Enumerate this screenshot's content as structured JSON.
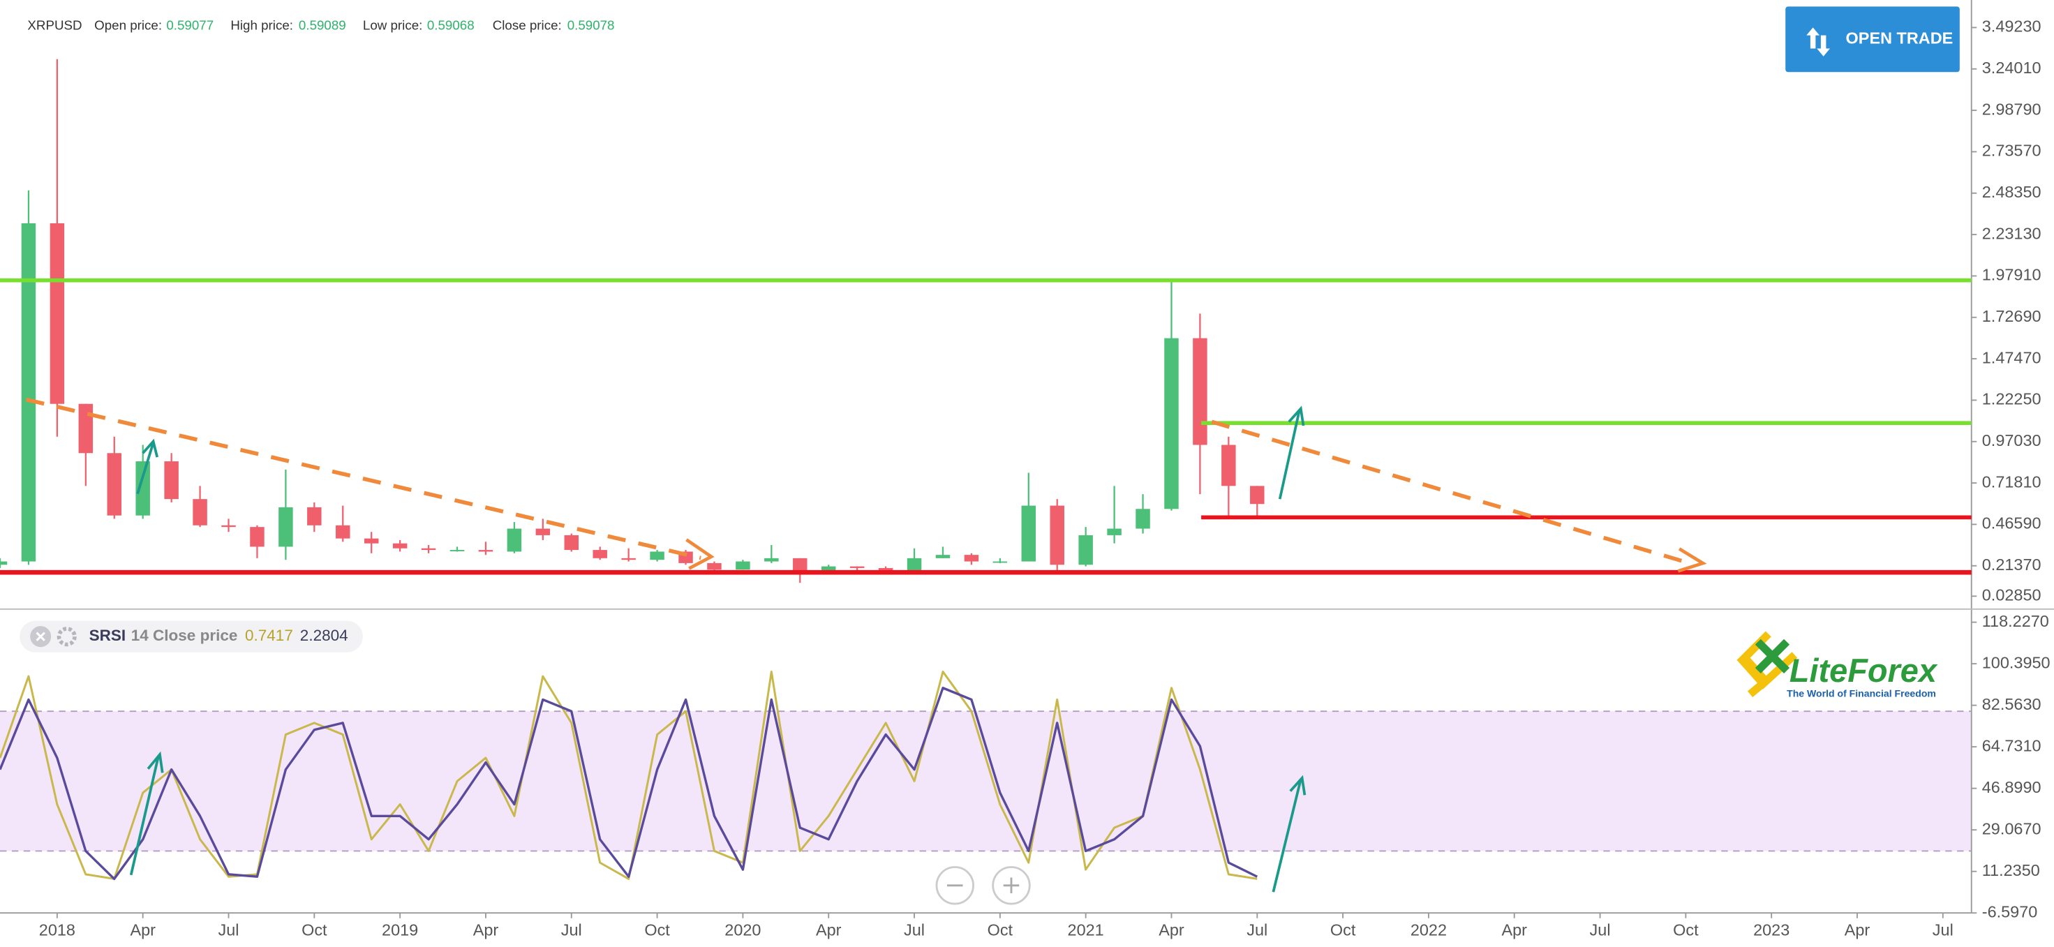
{
  "header": {
    "symbol": "XRPUSD",
    "fields": [
      {
        "label": "Open price:",
        "value": 0.59077
      },
      {
        "label": "High price:",
        "value": 0.59089
      },
      {
        "label": "Low price:",
        "value": 0.59068
      },
      {
        "label": "Close price:",
        "value": 0.59078
      }
    ]
  },
  "button": {
    "label": "OPEN TRADE"
  },
  "indicator": {
    "name": "SRSI",
    "params": "14 Close price",
    "value1": 0.7417,
    "value2": 2.2804
  },
  "logo": {
    "name": "LiteForex",
    "tagline": "The World of Financial Freedom"
  },
  "chart_data": [
    {
      "type": "candlestick",
      "x": [
        "2017-11",
        "2017-12",
        "2018-01",
        "2018-02",
        "2018-03",
        "2018-04",
        "2018-05",
        "2018-06",
        "2018-07",
        "2018-08",
        "2018-09",
        "2018-10",
        "2018-11",
        "2018-12",
        "2019-01",
        "2019-02",
        "2019-03",
        "2019-04",
        "2019-05",
        "2019-06",
        "2019-07",
        "2019-08",
        "2019-09",
        "2019-10",
        "2019-11",
        "2019-12",
        "2020-01",
        "2020-02",
        "2020-03",
        "2020-04",
        "2020-05",
        "2020-06",
        "2020-07",
        "2020-08",
        "2020-09",
        "2020-10",
        "2020-11",
        "2020-12",
        "2021-01",
        "2021-02",
        "2021-03",
        "2021-04",
        "2021-05",
        "2021-06",
        "2021-07"
      ],
      "open": [
        0.22,
        0.24,
        2.3,
        1.2,
        0.9,
        0.52,
        0.85,
        0.62,
        0.46,
        0.45,
        0.33,
        0.57,
        0.46,
        0.38,
        0.35,
        0.32,
        0.31,
        0.31,
        0.3,
        0.44,
        0.4,
        0.31,
        0.26,
        0.25,
        0.3,
        0.23,
        0.19,
        0.24,
        0.26,
        0.17,
        0.21,
        0.2,
        0.18,
        0.26,
        0.28,
        0.24,
        0.24,
        0.58,
        0.22,
        0.4,
        0.44,
        0.56,
        1.6,
        0.95,
        0.7
      ],
      "high": [
        0.26,
        2.5,
        3.3,
        1.2,
        1.0,
        0.95,
        0.9,
        0.7,
        0.5,
        0.46,
        0.8,
        0.6,
        0.58,
        0.42,
        0.37,
        0.34,
        0.33,
        0.36,
        0.48,
        0.5,
        0.41,
        0.33,
        0.32,
        0.31,
        0.31,
        0.24,
        0.25,
        0.34,
        0.26,
        0.22,
        0.21,
        0.21,
        0.32,
        0.33,
        0.29,
        0.26,
        0.78,
        0.62,
        0.45,
        0.7,
        0.65,
        1.96,
        1.75,
        1.0,
        0.7
      ],
      "low": [
        0.2,
        0.22,
        1.0,
        0.7,
        0.5,
        0.5,
        0.6,
        0.45,
        0.42,
        0.26,
        0.25,
        0.42,
        0.36,
        0.29,
        0.3,
        0.29,
        0.3,
        0.28,
        0.29,
        0.37,
        0.3,
        0.25,
        0.24,
        0.24,
        0.22,
        0.18,
        0.19,
        0.23,
        0.11,
        0.17,
        0.18,
        0.17,
        0.17,
        0.26,
        0.22,
        0.23,
        0.24,
        0.17,
        0.21,
        0.35,
        0.41,
        0.55,
        0.65,
        0.5,
        0.51
      ],
      "close": [
        0.24,
        2.3,
        1.2,
        0.9,
        0.52,
        0.85,
        0.62,
        0.46,
        0.45,
        0.33,
        0.57,
        0.46,
        0.38,
        0.35,
        0.32,
        0.31,
        0.31,
        0.3,
        0.44,
        0.4,
        0.31,
        0.26,
        0.25,
        0.3,
        0.23,
        0.19,
        0.24,
        0.26,
        0.17,
        0.21,
        0.2,
        0.18,
        0.26,
        0.28,
        0.24,
        0.24,
        0.58,
        0.22,
        0.4,
        0.44,
        0.56,
        1.6,
        0.95,
        0.7,
        0.59
      ],
      "up_color": "#4cbf78",
      "down_color": "#f0606c",
      "xlim": [
        "2017-11",
        "2023-08"
      ],
      "ylim": [
        -0.026,
        3.66
      ],
      "yticks": [
        {
          "value": 0.0285,
          "label": "0.02850"
        },
        {
          "value": 0.2137,
          "label": "0.21370"
        },
        {
          "value": 0.4659,
          "label": "0.46590"
        },
        {
          "value": 0.7181,
          "label": "0.71810"
        },
        {
          "value": 0.9703,
          "label": "0.97030"
        },
        {
          "value": 1.2225,
          "label": "1.22250"
        },
        {
          "value": 1.4747,
          "label": "1.47470"
        },
        {
          "value": 1.7269,
          "label": "1.72690"
        },
        {
          "value": 1.9791,
          "label": "1.97910"
        },
        {
          "value": 2.2313,
          "label": "2.23130"
        },
        {
          "value": 2.4835,
          "label": "2.48350"
        },
        {
          "value": 2.7357,
          "label": "2.73570"
        },
        {
          "value": 2.9879,
          "label": "2.98790"
        },
        {
          "value": 3.2401,
          "label": "3.24010"
        },
        {
          "value": 3.4923,
          "label": "3.49230"
        }
      ]
    },
    {
      "type": "line",
      "x": [
        "2017-11",
        "2017-12",
        "2018-01",
        "2018-02",
        "2018-03",
        "2018-04",
        "2018-05",
        "2018-06",
        "2018-07",
        "2018-08",
        "2018-09",
        "2018-10",
        "2018-11",
        "2018-12",
        "2019-01",
        "2019-02",
        "2019-03",
        "2019-04",
        "2019-05",
        "2019-06",
        "2019-07",
        "2019-08",
        "2019-09",
        "2019-10",
        "2019-11",
        "2019-12",
        "2020-01",
        "2020-02",
        "2020-03",
        "2020-04",
        "2020-05",
        "2020-06",
        "2020-07",
        "2020-08",
        "2020-09",
        "2020-10",
        "2020-11",
        "2020-12",
        "2021-01",
        "2021-02",
        "2021-03",
        "2021-04",
        "2021-05",
        "2021-06",
        "2021-07"
      ],
      "series": [
        {
          "color": "#c9b84c",
          "values": [
            60,
            95,
            40,
            10,
            8,
            45,
            55,
            25,
            9,
            10,
            70,
            75,
            70,
            25,
            40,
            20,
            50,
            60,
            35,
            95,
            75,
            15,
            8,
            70,
            80,
            20,
            15,
            97,
            20,
            35,
            55,
            75,
            50,
            97,
            80,
            40,
            15,
            85,
            12,
            30,
            35,
            90,
            55,
            10,
            8
          ]
        },
        {
          "color": "#5a4a9c",
          "values": [
            55,
            85,
            60,
            20,
            8,
            25,
            55,
            35,
            10,
            9,
            55,
            72,
            75,
            35,
            35,
            25,
            40,
            58,
            40,
            85,
            80,
            25,
            9,
            55,
            85,
            35,
            12,
            85,
            30,
            25,
            50,
            70,
            55,
            90,
            85,
            45,
            20,
            75,
            20,
            25,
            35,
            85,
            65,
            15,
            9
          ]
        }
      ],
      "band": [
        20,
        80
      ],
      "band_color": "#f3e6fb",
      "xlim": [
        "2017-11",
        "2023-08"
      ],
      "ylim": [
        -6.597,
        123.87
      ],
      "yticks": [
        {
          "value": -6.597,
          "label": "-6.5970"
        },
        {
          "value": 11.235,
          "label": "11.2350"
        },
        {
          "value": 29.067,
          "label": "29.0670"
        },
        {
          "value": 46.899,
          "label": "46.8990"
        },
        {
          "value": 64.731,
          "label": "64.7310"
        },
        {
          "value": 82.563,
          "label": "82.5630"
        },
        {
          "value": 100.395,
          "label": "100.3950"
        },
        {
          "value": 118.227,
          "label": "118.2270"
        }
      ],
      "xticks": [
        {
          "value": "2018-01",
          "label": "2018"
        },
        {
          "value": "2018-04",
          "label": "Apr"
        },
        {
          "value": "2018-07",
          "label": "Jul"
        },
        {
          "value": "2018-10",
          "label": "Oct"
        },
        {
          "value": "2019-01",
          "label": "2019"
        },
        {
          "value": "2019-04",
          "label": "Apr"
        },
        {
          "value": "2019-07",
          "label": "Jul"
        },
        {
          "value": "2019-10",
          "label": "Oct"
        },
        {
          "value": "2020-01",
          "label": "2020"
        },
        {
          "value": "2020-04",
          "label": "Apr"
        },
        {
          "value": "2020-07",
          "label": "Jul"
        },
        {
          "value": "2020-10",
          "label": "Oct"
        },
        {
          "value": "2021-01",
          "label": "2021"
        },
        {
          "value": "2021-04",
          "label": "Apr"
        },
        {
          "value": "2021-07",
          "label": "Jul"
        },
        {
          "value": "2021-10",
          "label": "Oct"
        },
        {
          "value": "2022-01",
          "label": "2022"
        },
        {
          "value": "2022-04",
          "label": "Apr"
        },
        {
          "value": "2022-07",
          "label": "Jul"
        },
        {
          "value": "2022-10",
          "label": "Oct"
        },
        {
          "value": "2023-01",
          "label": "2023"
        },
        {
          "value": "2023-04",
          "label": "Apr"
        },
        {
          "value": "2023-07",
          "label": "Jul"
        }
      ]
    }
  ]
}
